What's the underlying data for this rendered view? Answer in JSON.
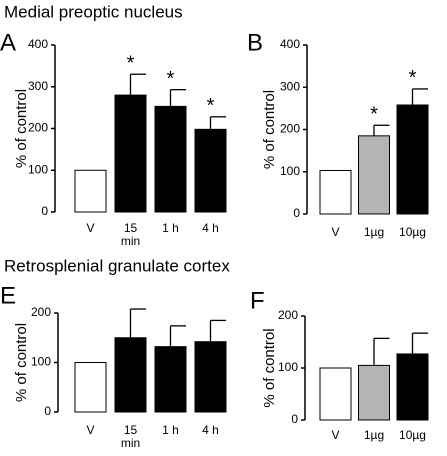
{
  "headings": [
    "Medial preoptic nucleus",
    "Retrosplenial granulate cortex"
  ],
  "chart_data": [
    {
      "type": "bar",
      "panel": "A",
      "ylabel": "% of control",
      "categories": [
        "V",
        "15\nmin",
        "1 h",
        "4 h"
      ],
      "values": [
        100,
        280,
        253,
        198
      ],
      "errors": [
        0,
        50,
        40,
        30
      ],
      "colors": [
        "#ffffff",
        "#000000",
        "#000000",
        "#000000"
      ],
      "significant": [
        false,
        true,
        true,
        true
      ],
      "marker": "*",
      "ylim": [
        0,
        400
      ],
      "yticks": [
        0,
        100,
        200,
        300,
        400
      ]
    },
    {
      "type": "bar",
      "panel": "B",
      "ylabel": "% of control",
      "categories": [
        "V",
        "1µg",
        "10µg"
      ],
      "values": [
        103,
        185,
        258
      ],
      "errors": [
        0,
        25,
        38
      ],
      "colors": [
        "#ffffff",
        "#b4b4b4",
        "#000000"
      ],
      "significant": [
        false,
        true,
        true
      ],
      "marker": "*",
      "ylim": [
        0,
        400
      ],
      "yticks": [
        0,
        100,
        200,
        300,
        400
      ]
    },
    {
      "type": "bar",
      "panel": "E",
      "ylabel": "% of control",
      "categories": [
        "V",
        "15\nmin",
        "1 h",
        "4 h"
      ],
      "values": [
        100,
        150,
        132,
        142
      ],
      "errors": [
        0,
        58,
        42,
        43
      ],
      "colors": [
        "#ffffff",
        "#000000",
        "#000000",
        "#000000"
      ],
      "ylim": [
        0,
        200
      ],
      "yticks": [
        0,
        100,
        200
      ]
    },
    {
      "type": "bar",
      "panel": "F",
      "ylabel": "% of control",
      "categories": [
        "V",
        "1µg",
        "10µg"
      ],
      "values": [
        100,
        105,
        127
      ],
      "errors": [
        0,
        52,
        40
      ],
      "colors": [
        "#ffffff",
        "#b4b4b4",
        "#000000"
      ],
      "ylim": [
        0,
        200
      ],
      "yticks": [
        0,
        100,
        200
      ]
    }
  ]
}
